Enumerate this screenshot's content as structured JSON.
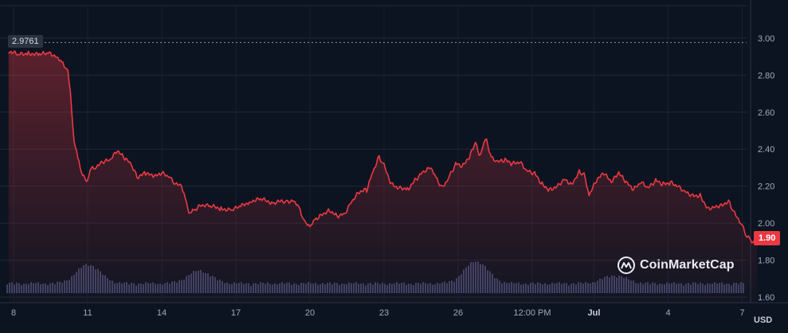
{
  "chart_data": {
    "type": "line",
    "title": "",
    "currency_label": "USD",
    "watermark": "CoinMarketCap",
    "start_value_label": "2.9761",
    "last_value_label": "1.90",
    "ylim": [
      1.57,
      3.12
    ],
    "y_ticks": [
      "3.00",
      "2.80",
      "2.60",
      "2.40",
      "2.20",
      "2.00",
      "1.80",
      "1.60"
    ],
    "y_tick_values": [
      3.0,
      2.8,
      2.6,
      2.4,
      2.2,
      2.0,
      1.8,
      1.6
    ],
    "x_ticks": [
      {
        "label": "8",
        "day": 0,
        "bold": false
      },
      {
        "label": "11",
        "day": 3,
        "bold": false
      },
      {
        "label": "14",
        "day": 6,
        "bold": false
      },
      {
        "label": "17",
        "day": 9,
        "bold": false
      },
      {
        "label": "20",
        "day": 12,
        "bold": false
      },
      {
        "label": "23",
        "day": 15,
        "bold": false
      },
      {
        "label": "26",
        "day": 18,
        "bold": false
      },
      {
        "label": "12:00 PM",
        "day": 21,
        "bold": false
      },
      {
        "label": "Jul",
        "day": 23.5,
        "bold": true
      },
      {
        "label": "4",
        "day": 26.5,
        "bold": false
      },
      {
        "label": "7",
        "day": 29.5,
        "bold": false
      }
    ],
    "grid": true,
    "line_color": "#ea3943",
    "fill_color": "#ea3943",
    "volume_color": "#3a4366",
    "series": [
      {
        "values": [
          [
            -0.2,
            2.93
          ],
          [
            0.2,
            2.91
          ],
          [
            0.6,
            2.92
          ],
          [
            1.0,
            2.91
          ],
          [
            1.4,
            2.92
          ],
          [
            1.8,
            2.9
          ],
          [
            2.0,
            2.86
          ],
          [
            2.2,
            2.82
          ],
          [
            2.3,
            2.7
          ],
          [
            2.45,
            2.45
          ],
          [
            2.6,
            2.35
          ],
          [
            2.8,
            2.26
          ],
          [
            2.95,
            2.22
          ],
          [
            3.1,
            2.29
          ],
          [
            3.35,
            2.3
          ],
          [
            3.6,
            2.33
          ],
          [
            3.9,
            2.34
          ],
          [
            4.2,
            2.39
          ],
          [
            4.5,
            2.35
          ],
          [
            4.75,
            2.32
          ],
          [
            5.0,
            2.25
          ],
          [
            5.35,
            2.27
          ],
          [
            5.7,
            2.25
          ],
          [
            6.0,
            2.27
          ],
          [
            6.3,
            2.25
          ],
          [
            6.55,
            2.21
          ],
          [
            6.8,
            2.2
          ],
          [
            6.95,
            2.14
          ],
          [
            7.1,
            2.05
          ],
          [
            7.3,
            2.07
          ],
          [
            7.6,
            2.1
          ],
          [
            8.0,
            2.09
          ],
          [
            8.4,
            2.08
          ],
          [
            8.8,
            2.07
          ],
          [
            9.2,
            2.09
          ],
          [
            9.6,
            2.12
          ],
          [
            10.0,
            2.13
          ],
          [
            10.5,
            2.11
          ],
          [
            11.0,
            2.12
          ],
          [
            11.4,
            2.12
          ],
          [
            11.6,
            2.07
          ],
          [
            11.8,
            2.0
          ],
          [
            12.0,
            1.98
          ],
          [
            12.2,
            2.02
          ],
          [
            12.5,
            2.05
          ],
          [
            12.8,
            2.07
          ],
          [
            13.1,
            2.04
          ],
          [
            13.4,
            2.05
          ],
          [
            13.7,
            2.12
          ],
          [
            14.0,
            2.17
          ],
          [
            14.3,
            2.18
          ],
          [
            14.55,
            2.28
          ],
          [
            14.8,
            2.36
          ],
          [
            15.0,
            2.31
          ],
          [
            15.3,
            2.21
          ],
          [
            15.6,
            2.19
          ],
          [
            16.0,
            2.19
          ],
          [
            16.3,
            2.24
          ],
          [
            16.6,
            2.28
          ],
          [
            16.9,
            2.3
          ],
          [
            17.1,
            2.25
          ],
          [
            17.35,
            2.19
          ],
          [
            17.6,
            2.24
          ],
          [
            17.9,
            2.32
          ],
          [
            18.2,
            2.31
          ],
          [
            18.5,
            2.37
          ],
          [
            18.7,
            2.44
          ],
          [
            18.85,
            2.36
          ],
          [
            19.0,
            2.42
          ],
          [
            19.15,
            2.45
          ],
          [
            19.35,
            2.35
          ],
          [
            19.6,
            2.33
          ],
          [
            19.9,
            2.34
          ],
          [
            20.2,
            2.32
          ],
          [
            20.5,
            2.33
          ],
          [
            20.8,
            2.28
          ],
          [
            21.1,
            2.27
          ],
          [
            21.4,
            2.21
          ],
          [
            21.7,
            2.18
          ],
          [
            22.0,
            2.2
          ],
          [
            22.3,
            2.24
          ],
          [
            22.6,
            2.21
          ],
          [
            22.9,
            2.28
          ],
          [
            23.1,
            2.26
          ],
          [
            23.3,
            2.15
          ],
          [
            23.6,
            2.23
          ],
          [
            23.9,
            2.27
          ],
          [
            24.2,
            2.22
          ],
          [
            24.5,
            2.27
          ],
          [
            24.8,
            2.22
          ],
          [
            25.1,
            2.18
          ],
          [
            25.4,
            2.22
          ],
          [
            25.7,
            2.19
          ],
          [
            26.0,
            2.23
          ],
          [
            26.3,
            2.21
          ],
          [
            26.6,
            2.22
          ],
          [
            26.9,
            2.2
          ],
          [
            27.2,
            2.17
          ],
          [
            27.5,
            2.15
          ],
          [
            27.8,
            2.15
          ],
          [
            28.1,
            2.08
          ],
          [
            28.4,
            2.09
          ],
          [
            28.7,
            2.1
          ],
          [
            28.95,
            2.12
          ],
          [
            29.2,
            2.05
          ],
          [
            29.45,
            2.0
          ],
          [
            29.65,
            1.94
          ],
          [
            29.9,
            1.9
          ],
          [
            30.1,
            1.9
          ]
        ]
      }
    ]
  }
}
